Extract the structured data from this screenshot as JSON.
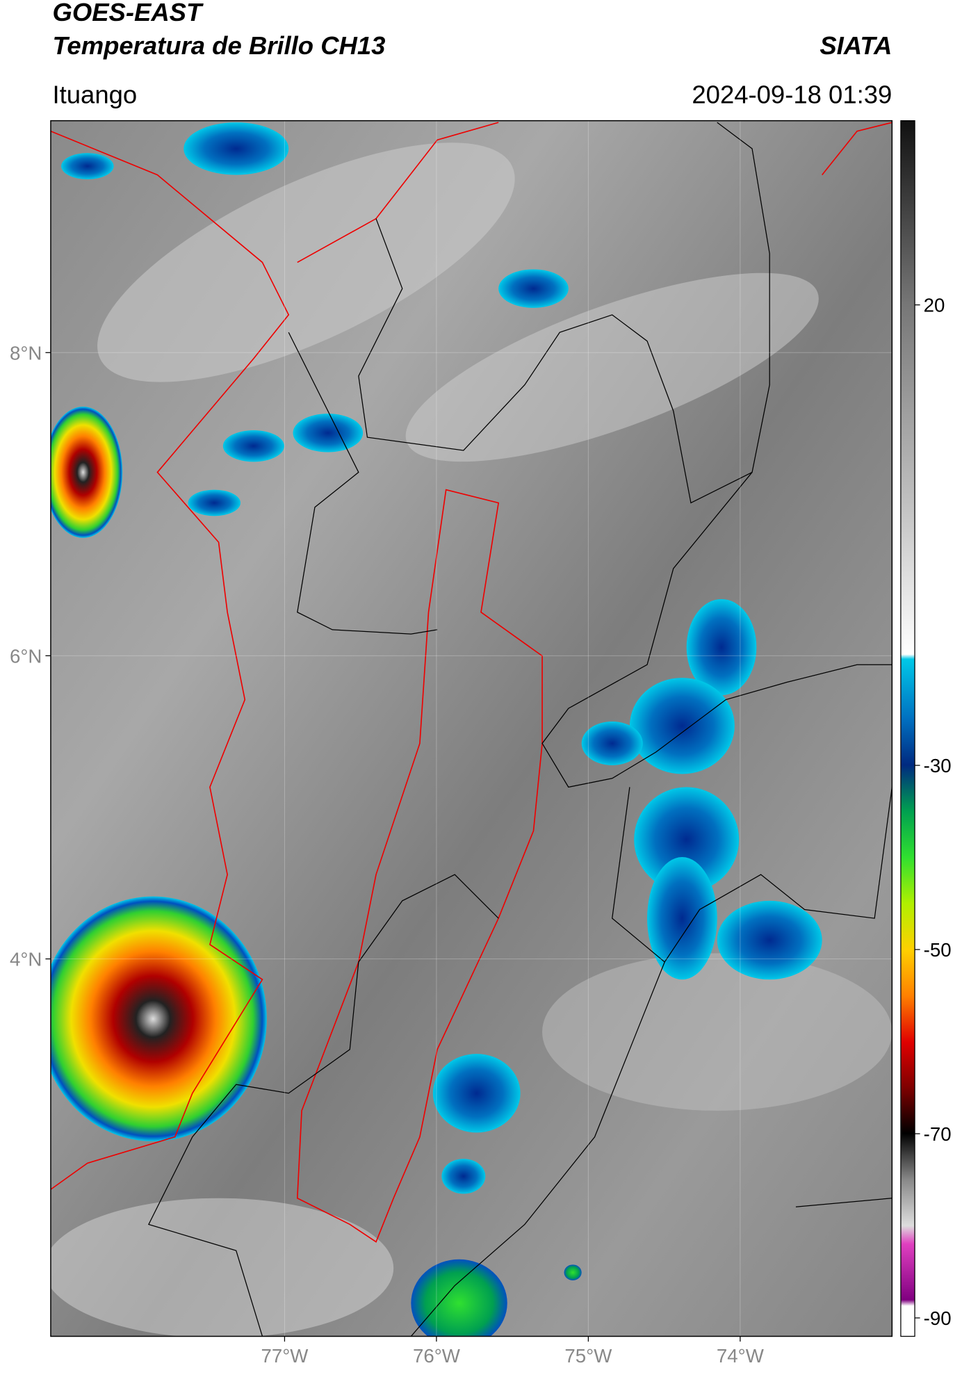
{
  "header": {
    "title": "GOES-EAST",
    "subtitle": "Temperatura de Brillo CH13",
    "source": "SIATA",
    "location": "Ituango",
    "datetime": "2024-09-18 01:39"
  },
  "map": {
    "lonlim": [
      -78.54,
      -73.0
    ],
    "latlim": [
      1.51,
      9.53
    ],
    "lon_ticks": [
      {
        "value": -77,
        "label": "77°W"
      },
      {
        "value": -76,
        "label": "76°W"
      },
      {
        "value": -75,
        "label": "75°W"
      },
      {
        "value": -74,
        "label": "74°W"
      }
    ],
    "lat_ticks": [
      {
        "value": 8,
        "label": "8°N"
      },
      {
        "value": 6,
        "label": "6°N"
      },
      {
        "value": 4,
        "label": "4°N"
      }
    ]
  },
  "colorbar": {
    "lim": [
      -92,
      40
    ],
    "ticks": [
      20,
      -30,
      -50,
      -70,
      -90
    ]
  }
}
